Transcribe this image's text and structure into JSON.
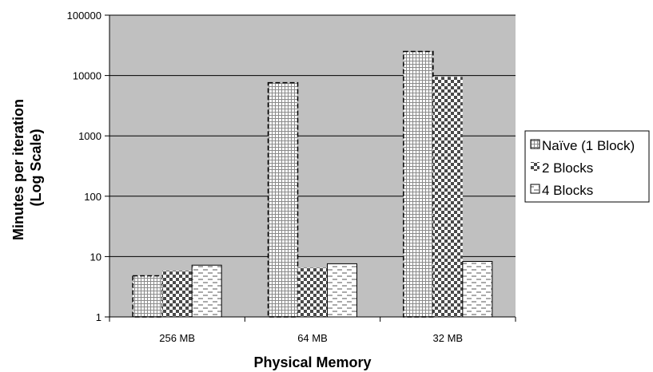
{
  "chart_data": {
    "type": "bar",
    "categories": [
      "256 MB",
      "64 MB",
      "32 MB"
    ],
    "series": [
      {
        "name": "Naïve (1 Block)",
        "values": [
          4.8,
          7600,
          25000
        ],
        "pattern": "grid"
      },
      {
        "name": "2 Blocks",
        "values": [
          5.8,
          6.5,
          9500
        ],
        "pattern": "checker"
      },
      {
        "name": "4 Blocks",
        "values": [
          7.2,
          7.6,
          8.3
        ],
        "pattern": "dash"
      }
    ],
    "xlabel": "Physical Memory",
    "ylabel_lines": [
      "Minutes per iteration",
      "(Log Scale)"
    ],
    "yscale": "log",
    "ylim": [
      1,
      100000
    ],
    "yticks": [
      1,
      10,
      100,
      1000,
      10000,
      100000
    ],
    "ytick_labels": [
      "1",
      "10",
      "100",
      "1000",
      "10000",
      "100000"
    ],
    "grid": true,
    "legend_position": "right",
    "plot_background": "#c0c0c0"
  }
}
